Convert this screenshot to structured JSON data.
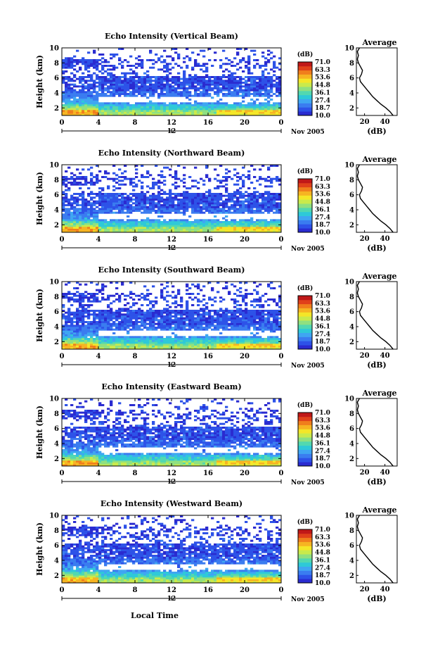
{
  "chart_data": {
    "type": "heatmap",
    "xlabel": "Local Time",
    "date_label": "Nov 2005",
    "day_marker_label": "12",
    "x_ticks": [
      "0",
      "4",
      "8",
      "12",
      "16",
      "20",
      "0"
    ],
    "xlim": [
      0,
      24
    ],
    "ylabel": "Height (km)",
    "y_ticks": [
      "2",
      "4",
      "6",
      "8",
      "10"
    ],
    "ylim": [
      1,
      10
    ],
    "colorbar": {
      "unit_label": "(dB)",
      "ticks": [
        "71.0",
        "63.3",
        "53.6",
        "44.8",
        "36.1",
        "27.4",
        "18.7",
        "10.0"
      ],
      "range": [
        10,
        71
      ],
      "colors": [
        "#2a2bd0",
        "#2d52e8",
        "#3a7cf0",
        "#3fa6f2",
        "#2ec9d8",
        "#52d8b0",
        "#8fe080",
        "#c9ea4c",
        "#f4e628",
        "#f6b422",
        "#f07e1c",
        "#e0401a",
        "#c01818"
      ]
    },
    "average_panel": {
      "title": "Average",
      "xlabel": "(dB)",
      "x_ticks": [
        "20",
        "40"
      ],
      "xlim": [
        12,
        52
      ],
      "y_ticks": [
        "2",
        "4",
        "6",
        "8",
        "10"
      ],
      "ylim": [
        1,
        10
      ],
      "profile": [
        {
          "height": 1.0,
          "db": 48
        },
        {
          "height": 1.5,
          "db": 45
        },
        {
          "height": 2.0,
          "db": 41
        },
        {
          "height": 2.5,
          "db": 36
        },
        {
          "height": 3.0,
          "db": 32
        },
        {
          "height": 3.5,
          "db": 28
        },
        {
          "height": 4.0,
          "db": 25
        },
        {
          "height": 4.5,
          "db": 22
        },
        {
          "height": 5.0,
          "db": 19
        },
        {
          "height": 5.5,
          "db": 16
        },
        {
          "height": 6.0,
          "db": 15
        },
        {
          "height": 6.5,
          "db": 17
        },
        {
          "height": 7.0,
          "db": 18
        },
        {
          "height": 7.5,
          "db": 16
        },
        {
          "height": 8.0,
          "db": 14
        },
        {
          "height": 8.5,
          "db": 13
        },
        {
          "height": 9.0,
          "db": 14
        },
        {
          "height": 9.5,
          "db": 13
        },
        {
          "height": 10.0,
          "db": 15
        }
      ]
    },
    "panels": [
      {
        "title": "Echo Intensity (Vertical Beam)"
      },
      {
        "title": "Echo Intensity (Northward Beam)"
      },
      {
        "title": "Echo Intensity (Southward Beam)"
      },
      {
        "title": "Echo Intensity (Eastward Beam)"
      },
      {
        "title": "Echo Intensity (Westward Beam)"
      }
    ]
  }
}
